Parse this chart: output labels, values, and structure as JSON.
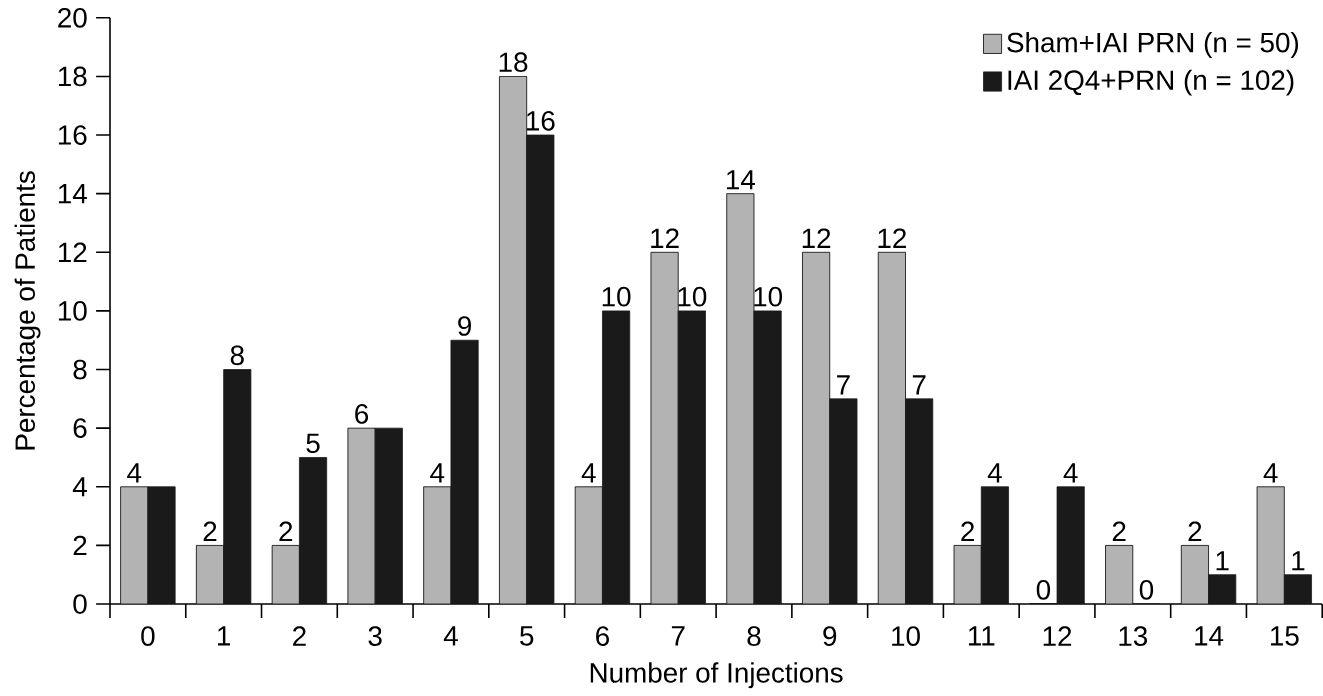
{
  "chart_data": {
    "type": "bar",
    "xlabel": "Number of Injections",
    "ylabel": "Percentage of Patients",
    "categories": [
      "0",
      "1",
      "2",
      "3",
      "4",
      "5",
      "6",
      "7",
      "8",
      "9",
      "10",
      "11",
      "12",
      "13",
      "14",
      "15"
    ],
    "series": [
      {
        "name": "Sham+IAI PRN (n = 50)",
        "color": "#b3b3b3",
        "values": [
          4,
          2,
          2,
          6,
          4,
          18,
          4,
          12,
          14,
          12,
          12,
          2,
          0,
          2,
          2,
          4
        ],
        "value_labels": [
          "4",
          "2",
          "2",
          "6",
          "4",
          "18",
          "4",
          "12",
          "14",
          "12",
          "12",
          "2",
          "0",
          "2",
          "2",
          "4"
        ]
      },
      {
        "name": "IAI 2Q4+PRN (n = 102)",
        "color": "#1a1a1a",
        "values": [
          4,
          8,
          5,
          6,
          9,
          16,
          10,
          10,
          10,
          7,
          7,
          4,
          4,
          0,
          1,
          1
        ],
        "value_labels": [
          null,
          "8",
          "5",
          null,
          "9",
          "16",
          "10",
          "10",
          "10",
          "7",
          "7",
          "4",
          "4",
          "0",
          "1",
          "1"
        ]
      }
    ],
    "ylim": [
      0,
      20
    ],
    "yticks": [
      0,
      2,
      4,
      6,
      8,
      10,
      12,
      14,
      16,
      18,
      20
    ],
    "grid": false,
    "legend": "top right"
  }
}
